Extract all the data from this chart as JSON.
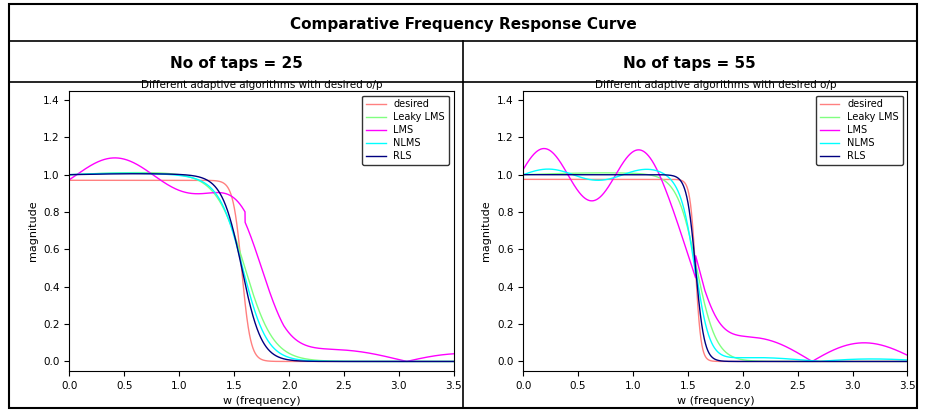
{
  "main_title": "Comparative Frequency Response Curve",
  "subplot_titles": [
    "No of taps = 25",
    "No of taps = 55"
  ],
  "subplot_inner_title": "Different adaptive algorithms with desired o/p",
  "xlabel": "w (frequency)",
  "ylabel": "magnitude",
  "xlim": [
    0,
    3.5
  ],
  "ylim": [
    -0.05,
    1.45
  ],
  "yticks": [
    0,
    0.2,
    0.4,
    0.6,
    0.8,
    1.0,
    1.2,
    1.4
  ],
  "xticks": [
    0,
    0.5,
    1.0,
    1.5,
    2.0,
    2.5,
    3.0,
    3.5
  ],
  "legend_labels": [
    "desired",
    "Leaky LMS",
    "LMS",
    "NLMS",
    "RLS"
  ],
  "colors": {
    "desired": "#FF8080",
    "leaky_lms": "#80FF80",
    "lms": "#FF00FF",
    "nlms": "#00FFFF",
    "rls": "#000080"
  }
}
